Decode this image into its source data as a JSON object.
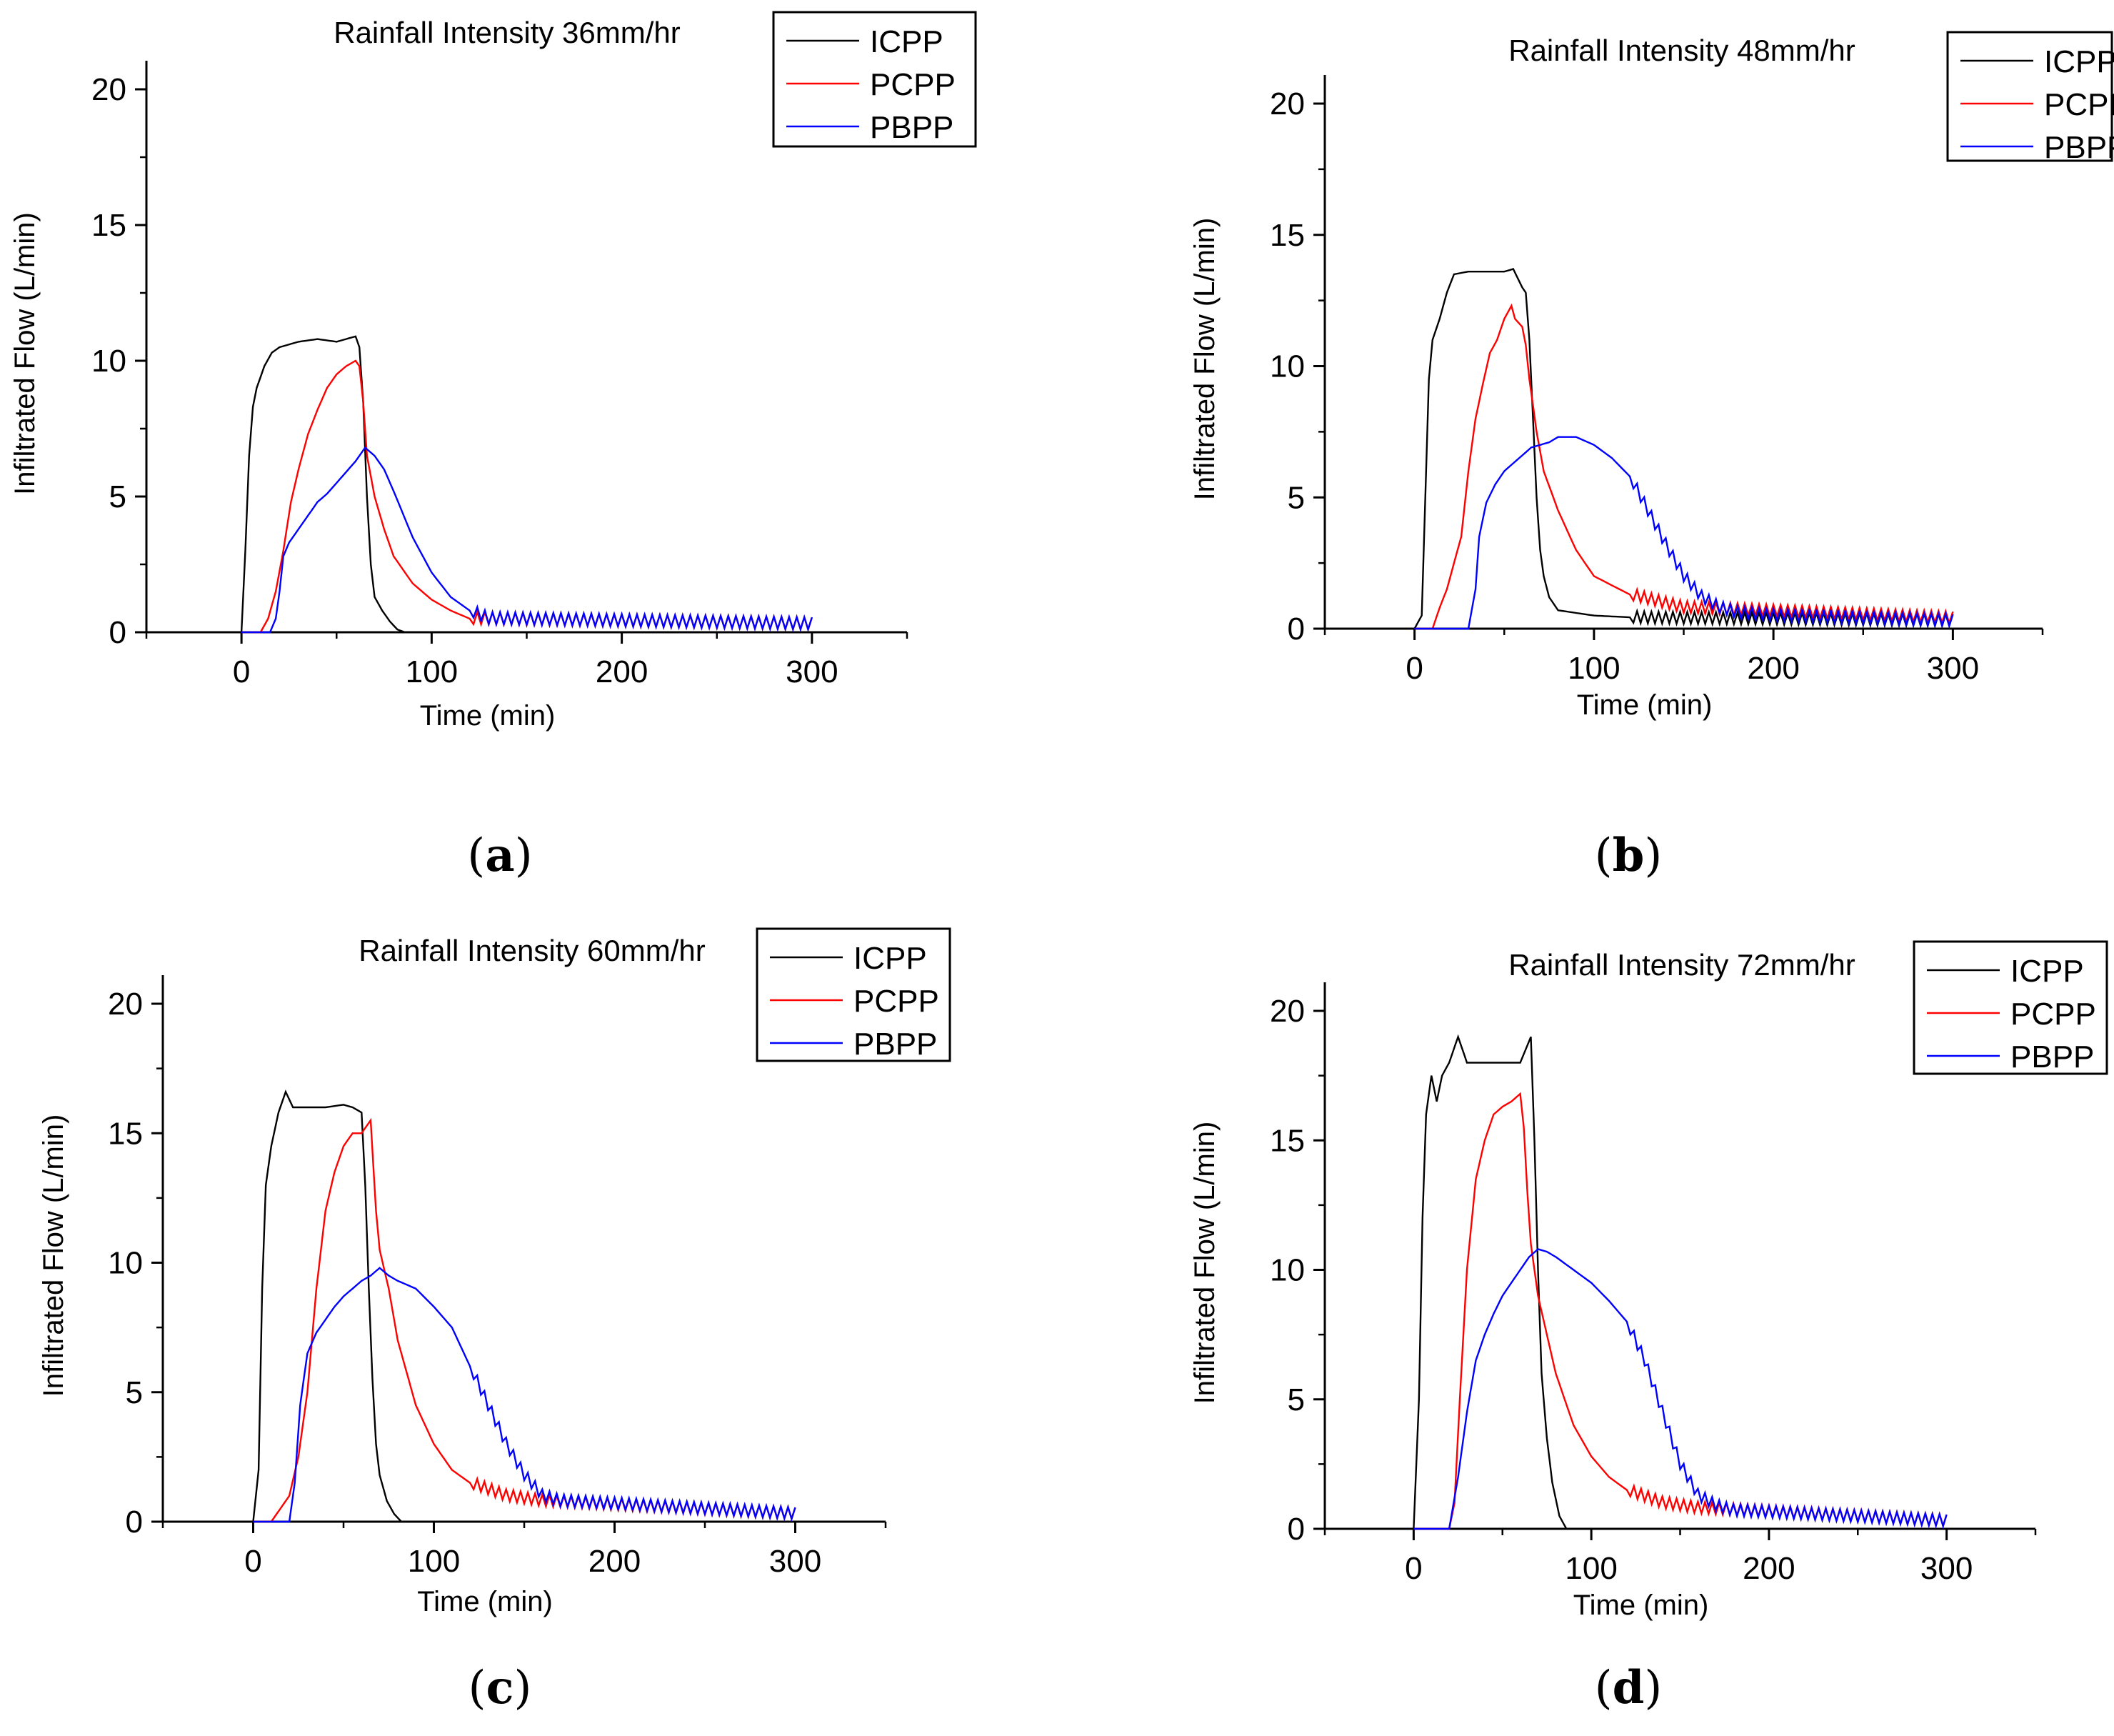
{
  "figure": {
    "panel_labels": [
      "a",
      "b",
      "c",
      "d"
    ]
  },
  "chart_data": [
    {
      "type": "line",
      "title": "Rainfall Intensity 36mm/hr",
      "xlabel": "Time (min)",
      "ylabel": "Infiltrated Flow (L/min)",
      "xlim": [
        -50,
        350
      ],
      "ylim": [
        0,
        20
      ],
      "xticks": [
        0,
        100,
        200,
        300
      ],
      "yticks": [
        0,
        5,
        10,
        15,
        20
      ],
      "legend_position": "top-right",
      "series": [
        {
          "name": "ICPP",
          "color": "#000000",
          "x": [
            0,
            2,
            4,
            6,
            8,
            12,
            16,
            20,
            30,
            40,
            50,
            55,
            60,
            62,
            64,
            66,
            68,
            70,
            74,
            78,
            82,
            86,
            300
          ],
          "y": [
            0,
            3,
            6.5,
            8.3,
            9.0,
            9.8,
            10.3,
            10.5,
            10.7,
            10.8,
            10.7,
            10.8,
            10.9,
            10.5,
            8.5,
            5.0,
            2.5,
            1.3,
            0.8,
            0.4,
            0.1,
            0,
            0
          ]
        },
        {
          "name": "PCPP",
          "color": "#ff0000",
          "x": [
            0,
            10,
            14,
            18,
            22,
            26,
            30,
            35,
            40,
            45,
            50,
            55,
            60,
            62,
            64,
            66,
            70,
            75,
            80,
            90,
            100,
            110,
            120,
            300
          ],
          "y": [
            0,
            0,
            0.5,
            1.5,
            3.0,
            4.8,
            6.0,
            7.3,
            8.2,
            9.0,
            9.5,
            9.8,
            10.0,
            9.8,
            8.5,
            6.5,
            5.0,
            3.8,
            2.8,
            1.8,
            1.2,
            0.8,
            0.5,
            0.3
          ]
        },
        {
          "name": "PBPP",
          "color": "#0000ff",
          "x": [
            0,
            15,
            18,
            20,
            22,
            25,
            30,
            35,
            40,
            45,
            50,
            55,
            60,
            65,
            70,
            75,
            80,
            90,
            100,
            110,
            120,
            130,
            300
          ],
          "y": [
            0,
            0,
            0.5,
            1.5,
            2.8,
            3.3,
            3.8,
            4.3,
            4.8,
            5.1,
            5.5,
            5.9,
            6.3,
            6.8,
            6.5,
            6.0,
            5.2,
            3.5,
            2.2,
            1.3,
            0.8,
            0.5,
            0.3
          ]
        }
      ]
    },
    {
      "type": "line",
      "title": "Rainfall Intensity 48mm/hr",
      "xlabel": "Time (min)",
      "ylabel": "Infiltrated Flow (L/min)",
      "xlim": [
        -50,
        350
      ],
      "ylim": [
        0,
        20
      ],
      "xticks": [
        0,
        100,
        200,
        300
      ],
      "yticks": [
        0,
        5,
        10,
        15,
        20
      ],
      "legend_position": "top-right",
      "series": [
        {
          "name": "ICPP",
          "color": "#000000",
          "x": [
            0,
            4,
            6,
            8,
            10,
            14,
            18,
            22,
            30,
            40,
            50,
            55,
            60,
            62,
            64,
            66,
            68,
            70,
            72,
            75,
            80,
            90,
            100,
            130,
            300
          ],
          "y": [
            0,
            0.5,
            5,
            9.5,
            11.0,
            11.8,
            12.8,
            13.5,
            13.6,
            13.6,
            13.6,
            13.7,
            13.0,
            12.8,
            11.0,
            8.0,
            5.0,
            3.0,
            2.0,
            1.2,
            0.7,
            0.6,
            0.5,
            0.4,
            0.3
          ]
        },
        {
          "name": "PCPP",
          "color": "#ff0000",
          "x": [
            0,
            10,
            14,
            18,
            22,
            26,
            30,
            34,
            38,
            42,
            46,
            50,
            54,
            56,
            60,
            62,
            64,
            68,
            72,
            80,
            90,
            100,
            120,
            150,
            300
          ],
          "y": [
            0,
            0,
            0.8,
            1.5,
            2.5,
            3.5,
            6.0,
            8.0,
            9.3,
            10.5,
            11.0,
            11.8,
            12.3,
            11.8,
            11.5,
            10.8,
            9.5,
            7.5,
            6.0,
            4.5,
            3.0,
            2.0,
            1.3,
            0.8,
            0.4
          ]
        },
        {
          "name": "PBPP",
          "color": "#0000ff",
          "x": [
            0,
            30,
            34,
            36,
            40,
            45,
            50,
            55,
            60,
            65,
            70,
            75,
            80,
            85,
            90,
            100,
            110,
            120,
            130,
            140,
            150,
            160,
            170,
            180,
            200,
            300
          ],
          "y": [
            0,
            0,
            1.5,
            3.5,
            4.8,
            5.5,
            6.0,
            6.3,
            6.6,
            6.9,
            7.0,
            7.1,
            7.3,
            7.3,
            7.3,
            7.0,
            6.5,
            5.8,
            4.5,
            3.2,
            2.0,
            1.2,
            0.8,
            0.6,
            0.5,
            0.3
          ]
        }
      ]
    },
    {
      "type": "line",
      "title": "Rainfall Intensity 60mm/hr",
      "xlabel": "Time (min)",
      "ylabel": "Infiltrated Flow (L/min)",
      "xlim": [
        -50,
        350
      ],
      "ylim": [
        0,
        20
      ],
      "xticks": [
        0,
        100,
        200,
        300
      ],
      "yticks": [
        0,
        5,
        10,
        15,
        20
      ],
      "legend_position": "top-right",
      "series": [
        {
          "name": "ICPP",
          "color": "#000000",
          "x": [
            0,
            3,
            5,
            7,
            10,
            14,
            18,
            22,
            30,
            40,
            50,
            55,
            60,
            62,
            64,
            66,
            68,
            70,
            74,
            78,
            82,
            300
          ],
          "y": [
            0,
            2,
            9,
            13,
            14.5,
            15.8,
            16.6,
            16.0,
            16.0,
            16.0,
            16.1,
            16.0,
            15.8,
            13.0,
            9.0,
            5.5,
            3.0,
            1.8,
            0.8,
            0.3,
            0,
            0
          ]
        },
        {
          "name": "PCPP",
          "color": "#ff0000",
          "x": [
            0,
            10,
            15,
            20,
            25,
            30,
            35,
            40,
            45,
            50,
            55,
            60,
            65,
            68,
            70,
            75,
            80,
            90,
            100,
            110,
            120,
            140,
            160,
            300
          ],
          "y": [
            0,
            0,
            0.5,
            1.0,
            2.5,
            5.0,
            9.0,
            12.0,
            13.5,
            14.5,
            15.0,
            15.0,
            15.5,
            12.0,
            10.5,
            9.0,
            7.0,
            4.5,
            3.0,
            2.0,
            1.5,
            1.0,
            0.8,
            0.3
          ]
        },
        {
          "name": "PBPP",
          "color": "#0000ff",
          "x": [
            0,
            20,
            23,
            26,
            30,
            35,
            40,
            45,
            50,
            55,
            60,
            65,
            70,
            75,
            80,
            90,
            100,
            110,
            120,
            130,
            140,
            150,
            160,
            170,
            300
          ],
          "y": [
            0,
            0,
            1.5,
            4.5,
            6.5,
            7.3,
            7.8,
            8.3,
            8.7,
            9.0,
            9.3,
            9.5,
            9.8,
            9.5,
            9.3,
            9.0,
            8.3,
            7.5,
            6.0,
            4.5,
            3.0,
            1.8,
            1.0,
            0.8,
            0.3
          ]
        }
      ]
    },
    {
      "type": "line",
      "title": "Rainfall Intensity 72mm/hr",
      "xlabel": "Time (min)",
      "ylabel": "Infiltrated Flow (L/min)",
      "xlim": [
        -50,
        350
      ],
      "ylim": [
        0,
        20
      ],
      "xticks": [
        0,
        100,
        200,
        300
      ],
      "yticks": [
        0,
        5,
        10,
        15,
        20
      ],
      "legend_position": "top-right",
      "series": [
        {
          "name": "ICPP",
          "color": "#000000",
          "x": [
            0,
            3,
            5,
            7,
            10,
            13,
            16,
            20,
            25,
            30,
            40,
            50,
            60,
            66,
            68,
            70,
            72,
            75,
            78,
            82,
            86,
            300
          ],
          "y": [
            0,
            5,
            12,
            16,
            17.5,
            16.5,
            17.5,
            18.0,
            19.0,
            18.0,
            18.0,
            18.0,
            18.0,
            19.0,
            15.0,
            10.0,
            6.0,
            3.5,
            1.8,
            0.5,
            0,
            0
          ]
        },
        {
          "name": "PCPP",
          "color": "#ff0000",
          "x": [
            0,
            20,
            23,
            26,
            30,
            35,
            40,
            45,
            50,
            55,
            60,
            62,
            64,
            66,
            68,
            70,
            75,
            80,
            90,
            100,
            110,
            120,
            140,
            160,
            300
          ],
          "y": [
            0,
            0,
            1.0,
            5.0,
            10.0,
            13.5,
            15.0,
            16.0,
            16.3,
            16.5,
            16.8,
            15.5,
            13.0,
            11.0,
            10.0,
            9.0,
            7.5,
            6.0,
            4.0,
            2.8,
            2.0,
            1.5,
            1.0,
            0.8,
            0.3
          ]
        },
        {
          "name": "PBPP",
          "color": "#0000ff",
          "x": [
            0,
            20,
            25,
            30,
            35,
            40,
            45,
            50,
            55,
            60,
            65,
            70,
            75,
            80,
            90,
            100,
            110,
            120,
            130,
            140,
            150,
            160,
            170,
            180,
            300
          ],
          "y": [
            0,
            0,
            2.0,
            4.5,
            6.5,
            7.5,
            8.3,
            9.0,
            9.5,
            10.0,
            10.5,
            10.8,
            10.7,
            10.5,
            10.0,
            9.5,
            8.8,
            8.0,
            6.5,
            4.5,
            2.5,
            1.3,
            0.9,
            0.7,
            0.3
          ]
        }
      ]
    }
  ]
}
